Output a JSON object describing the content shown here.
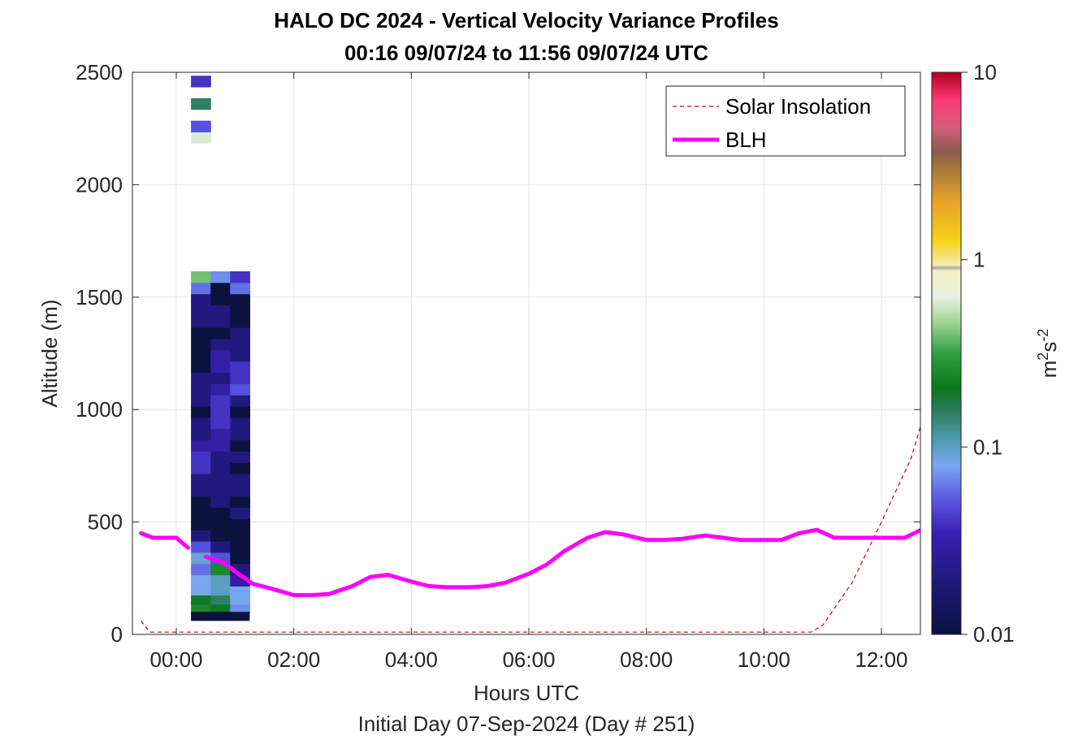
{
  "chart_data": {
    "type": "heatmap",
    "title": "HALO DC 2024 - Vertical Velocity Variance Profiles",
    "subtitle": "00:16 09/07/24 to 11:56 09/07/24  UTC",
    "xlabel": "Hours UTC",
    "xlabel2": "Initial Day 07-Sep-2024 (Day # 251)",
    "ylabel": "Altitude (m)",
    "colorbar_label": "m²s⁻²",
    "colorbar_label_base": "m",
    "colorbar_label_sup1": "2",
    "colorbar_label_s": "s",
    "colorbar_label_sup2": "-2",
    "x_ticks": [
      "00:00",
      "02:00",
      "04:00",
      "06:00",
      "08:00",
      "10:00",
      "12:00"
    ],
    "x_tick_hours": [
      0,
      2,
      4,
      6,
      8,
      10,
      12
    ],
    "y_ticks": [
      "0",
      "500",
      "1000",
      "1500",
      "2000",
      "2500"
    ],
    "y_tick_values": [
      0,
      500,
      1000,
      1500,
      2000,
      2500
    ],
    "xlim_hours": [
      -0.6,
      12.75
    ],
    "ylim": [
      0,
      2500
    ],
    "colorbar_ticks": [
      "0.01",
      "0.1",
      "1",
      "10"
    ],
    "colorbar_tick_values": [
      0.01,
      0.1,
      1,
      10
    ],
    "colorbar_scale": "log",
    "colorbar_range": [
      0.01,
      10
    ],
    "grid": true,
    "legend_position": "top-right",
    "legend": [
      {
        "name": "Solar Insolation",
        "color": "#d00000",
        "style": "dashed"
      },
      {
        "name": "BLH",
        "color": "#ff00ff",
        "style": "solid"
      }
    ],
    "blh_series": {
      "name": "BLH",
      "color": "#ff00ff",
      "segments": [
        {
          "x": [
            -0.6,
            -0.4,
            -0.2,
            0.0,
            0.2
          ],
          "y": [
            450,
            430,
            430,
            430,
            385
          ]
        },
        {
          "x": [
            0.5,
            0.8,
            1.0,
            1.3,
            1.6,
            2.0,
            2.3,
            2.6,
            3.0,
            3.3,
            3.6,
            4.0,
            4.3,
            4.6,
            5.0,
            5.3,
            5.6,
            6.0,
            6.3,
            6.6,
            7.0,
            7.3,
            7.6,
            8.0,
            8.3,
            8.6,
            9.0,
            9.3,
            9.6,
            10.0,
            10.3,
            10.6,
            10.9,
            11.2,
            11.5,
            11.8,
            12.1,
            12.4,
            12.75
          ],
          "y": [
            345,
            320,
            280,
            225,
            205,
            175,
            175,
            180,
            215,
            255,
            265,
            235,
            215,
            210,
            210,
            215,
            230,
            270,
            310,
            370,
            430,
            455,
            445,
            420,
            420,
            425,
            440,
            430,
            420,
            420,
            420,
            450,
            465,
            430,
            430,
            430,
            430,
            430,
            475
          ]
        }
      ]
    },
    "solar_series": {
      "name": "Solar Insolation",
      "color": "#d00000",
      "x": [
        -0.6,
        -0.45,
        10.8,
        11.0,
        11.5,
        12.0,
        12.5,
        12.75
      ],
      "y": [
        60,
        10,
        10,
        40,
        230,
        500,
        780,
        1000
      ]
    },
    "heatmap": {
      "x_start_hours": 0.25,
      "bin_width_hours": 0.3333,
      "y_bin_m": 49.5,
      "ground_row_value": 0.01,
      "columns": [
        {
          "cells": [
            [
              120,
              0.25
            ],
            [
              160,
              0.2
            ],
            [
              200,
              0.08
            ],
            [
              240,
              0.08
            ],
            [
              290,
              0.06
            ],
            [
              340,
              0.09
            ],
            [
              390,
              0.05
            ],
            [
              440,
              0.02
            ],
            [
              490,
              0.01
            ],
            [
              540,
              0.01
            ],
            [
              590,
              0.01
            ],
            [
              640,
              0.02
            ],
            [
              690,
              0.02
            ],
            [
              740,
              0.04
            ],
            [
              790,
              0.04
            ],
            [
              840,
              0.03
            ],
            [
              890,
              0.02
            ],
            [
              940,
              0.02
            ],
            [
              990,
              0.01
            ],
            [
              1040,
              0.02
            ],
            [
              1090,
              0.02
            ],
            [
              1140,
              0.02
            ],
            [
              1190,
              0.01
            ],
            [
              1240,
              0.01
            ],
            [
              1290,
              0.01
            ],
            [
              1340,
              0.01
            ],
            [
              1390,
              0.02
            ],
            [
              1440,
              0.02
            ],
            [
              1490,
              0.02
            ],
            [
              1540,
              0.06
            ],
            [
              1590,
              0.4
            ],
            [
              2210,
              0.6
            ],
            [
              2260,
              0.05
            ],
            [
              2360,
              0.15
            ],
            [
              2460,
              0.04
            ]
          ]
        },
        {
          "cells": [
            [
              120,
              0.2
            ],
            [
              160,
              0.15
            ],
            [
              200,
              0.1
            ],
            [
              240,
              0.1
            ],
            [
              290,
              0.25
            ],
            [
              340,
              0.05
            ],
            [
              390,
              0.02
            ],
            [
              440,
              0.01
            ],
            [
              490,
              0.01
            ],
            [
              540,
              0.01
            ],
            [
              590,
              0.02
            ],
            [
              640,
              0.02
            ],
            [
              690,
              0.02
            ],
            [
              740,
              0.02
            ],
            [
              790,
              0.02
            ],
            [
              840,
              0.03
            ],
            [
              890,
              0.03
            ],
            [
              940,
              0.04
            ],
            [
              990,
              0.04
            ],
            [
              1040,
              0.04
            ],
            [
              1090,
              0.03
            ],
            [
              1140,
              0.02
            ],
            [
              1190,
              0.03
            ],
            [
              1240,
              0.03
            ],
            [
              1290,
              0.02
            ],
            [
              1340,
              0.01
            ],
            [
              1390,
              0.02
            ],
            [
              1440,
              0.02
            ],
            [
              1490,
              0.01
            ],
            [
              1540,
              0.01
            ],
            [
              1590,
              0.07
            ]
          ]
        },
        {
          "cells": [
            [
              120,
              0.07
            ],
            [
              160,
              0.08
            ],
            [
              200,
              0.08
            ],
            [
              240,
              0.03
            ],
            [
              290,
              0.02
            ],
            [
              340,
              0.01
            ],
            [
              390,
              0.01
            ],
            [
              440,
              0.01
            ],
            [
              490,
              0.01
            ],
            [
              540,
              0.02
            ],
            [
              590,
              0.01
            ],
            [
              640,
              0.02
            ],
            [
              690,
              0.02
            ],
            [
              740,
              0.01
            ],
            [
              790,
              0.02
            ],
            [
              840,
              0.01
            ],
            [
              890,
              0.02
            ],
            [
              940,
              0.02
            ],
            [
              990,
              0.01
            ],
            [
              1040,
              0.02
            ],
            [
              1090,
              0.05
            ],
            [
              1140,
              0.04
            ],
            [
              1190,
              0.04
            ],
            [
              1240,
              0.02
            ],
            [
              1290,
              0.02
            ],
            [
              1340,
              0.02
            ],
            [
              1390,
              0.01
            ],
            [
              1440,
              0.01
            ],
            [
              1490,
              0.01
            ],
            [
              1540,
              0.06
            ],
            [
              1590,
              0.04
            ]
          ]
        }
      ]
    }
  }
}
